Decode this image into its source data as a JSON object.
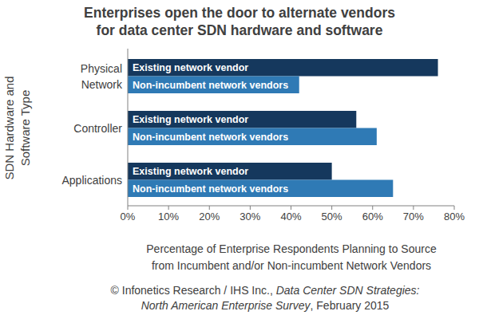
{
  "chart_data": {
    "type": "bar",
    "orientation": "horizontal",
    "title": "Enterprises open the door to alternate vendors\nfor data center SDN hardware and software",
    "y_label": "SDN Hardware and\nSoftware Type",
    "x_label": "Percentage of Enterprise Respondents Planning to Source\nfrom Incumbent and/or Non-incumbent Network Vendors",
    "source": {
      "prefix": "© Infonetics Research / IHS Inc., ",
      "publication": "Data Center SDN Strategies:\nNorth American Enterprise Survey",
      "suffix": ", February 2015"
    },
    "categories": [
      "Physical\nNetwork",
      "Controller",
      "Applications"
    ],
    "series": [
      {
        "name": "Existing network vendor",
        "color": "#15385d",
        "values": [
          76,
          56,
          50
        ]
      },
      {
        "name": "Non-incumbent network vendors",
        "color": "#2f7ab5",
        "values": [
          42,
          61,
          65
        ]
      }
    ],
    "xlim": [
      0,
      80
    ],
    "xticks": [
      {
        "value": 0,
        "label": "0%"
      },
      {
        "value": 10,
        "label": "10%"
      },
      {
        "value": 20,
        "label": "20%"
      },
      {
        "value": 30,
        "label": "30%"
      },
      {
        "value": 40,
        "label": "40%"
      },
      {
        "value": 50,
        "label": "50%"
      },
      {
        "value": 60,
        "label": "60%"
      },
      {
        "value": 70,
        "label": "70%"
      },
      {
        "value": 80,
        "label": "80%"
      }
    ],
    "grid": false
  }
}
